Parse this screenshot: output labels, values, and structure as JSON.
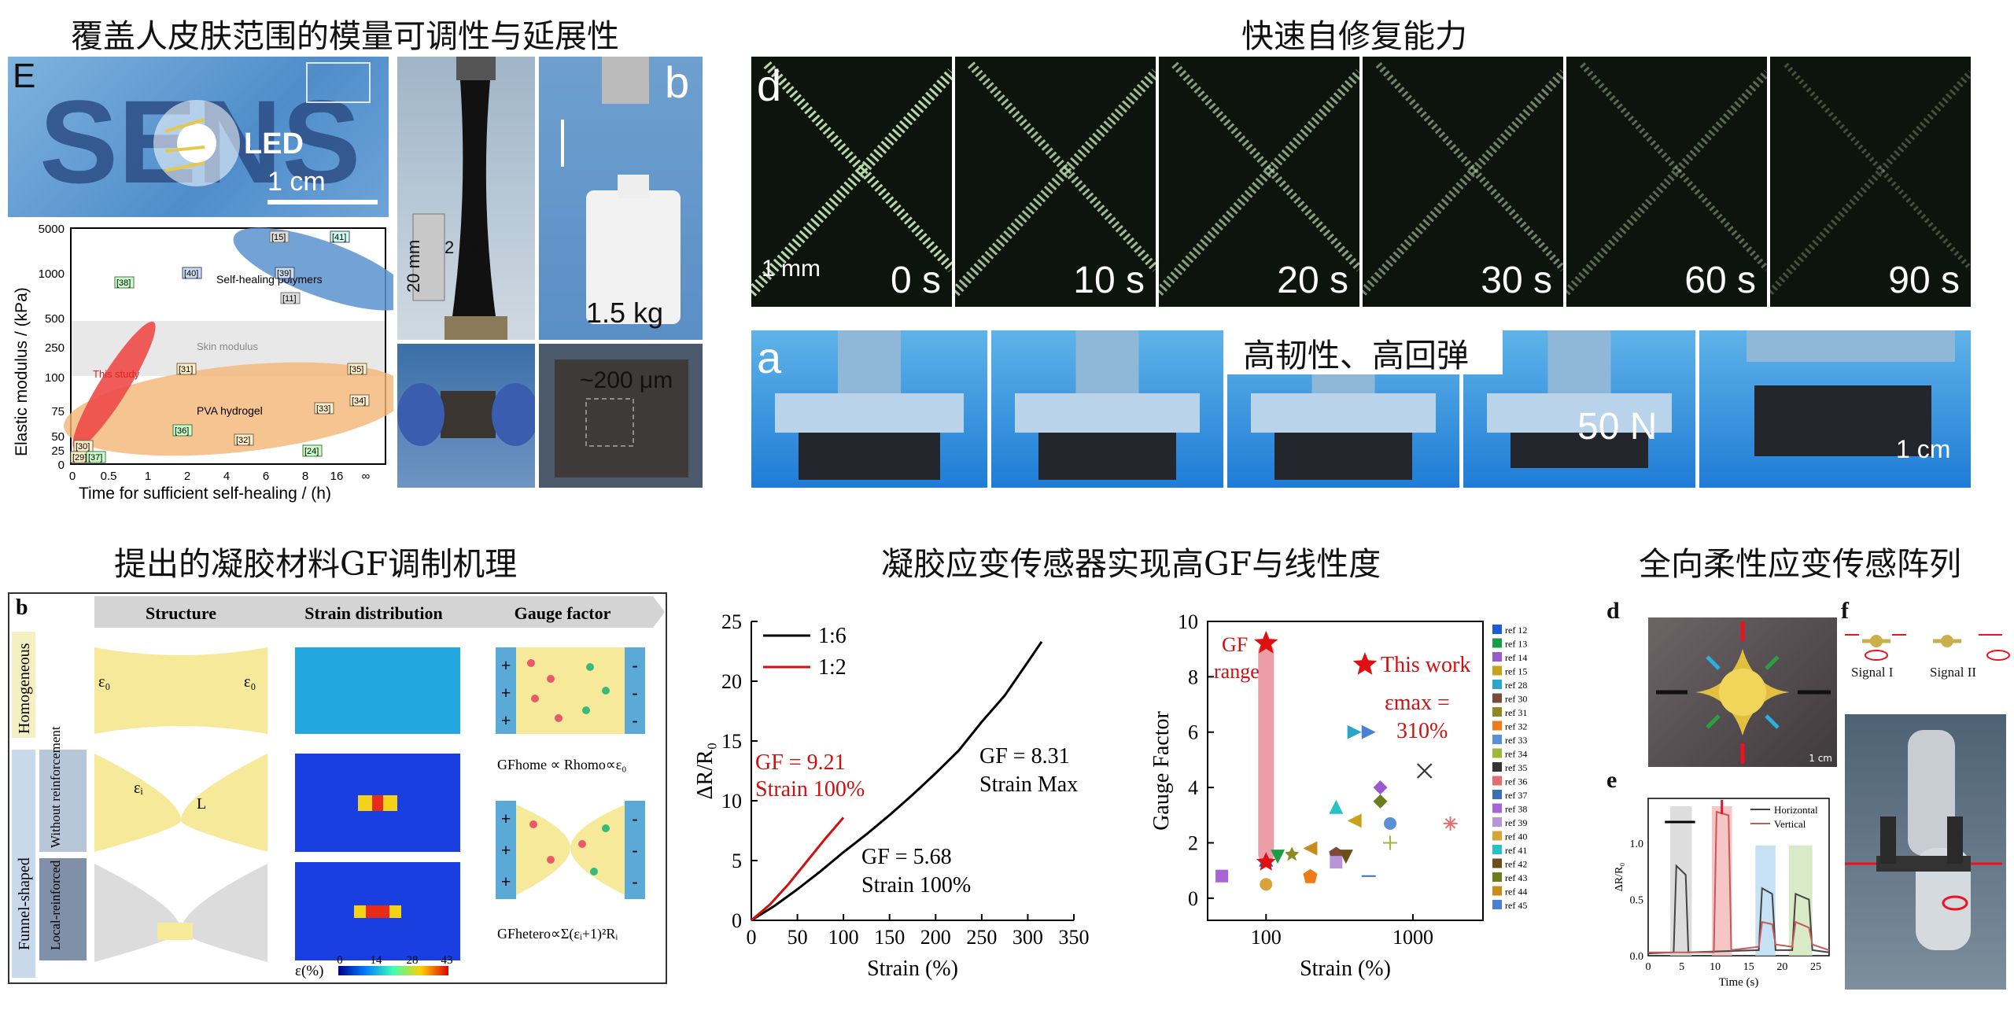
{
  "section_titles": {
    "skin_modulus": "覆盖人皮肤范围的模量可调性与延展性",
    "self_healing": "快速自修复能力",
    "toughness": "高韧性、高回弹",
    "gf_mechanism": "提出的凝胶材料GF调制机理",
    "gf_linearity": "凝胶应变传感器实现高GF与线性度",
    "array": "全向柔性应变传感阵列"
  },
  "panel_e_top": {
    "letter": "E",
    "led_label": "LED",
    "scale": "1 cm"
  },
  "panel_b_top": {
    "letter": "b",
    "dim_vertical": "20 mm",
    "dim_horizontal": "2 mm",
    "weight": "1.5 kg",
    "thickness": "~200 μm"
  },
  "panel_d_top": {
    "letter": "d",
    "scale": "1 mm",
    "times": [
      "0 s",
      "10 s",
      "20 s",
      "30 s",
      "60 s",
      "90 s"
    ]
  },
  "panel_a_top": {
    "letter": "a",
    "force": "50 N",
    "scale": "1 cm"
  },
  "modulus_chart": {
    "ylabel": "Elastic modulus / (kPa)",
    "xlabel": "Time for sufficient self-healing / (h)",
    "y_ticks": [
      "5000",
      "1000",
      "500",
      "250",
      "100",
      "75",
      "50",
      "25",
      "0"
    ],
    "x_ticks": [
      "0",
      "0.5",
      "1",
      "2",
      "4",
      "6",
      "8",
      "16",
      "∞"
    ],
    "region_self_healing": "Self-healing polymers",
    "region_skin": "Skin modulus",
    "region_pva": "PVA hydrogel",
    "this_study": "This study",
    "refs": [
      "[15]",
      "[41]",
      "[40]",
      "[39]",
      "[11]",
      "[38]",
      "[31]",
      "[35]",
      "[34]",
      "[33]",
      "[36]",
      "[32]",
      "[24]",
      "[30]",
      "[29]",
      "[37]"
    ]
  },
  "mechanism": {
    "letter": "b",
    "headers": [
      "Structure",
      "Strain distribution",
      "Gauge factor"
    ],
    "row_labels": {
      "homogeneous": "Homogeneous",
      "funnel": "Funnel-shaped",
      "without": "Without reinforcement",
      "local": "Local-reinforced"
    },
    "eps0": "ε₀",
    "epsi": "εᵢ",
    "L": "L",
    "gf_home": "GFhome ∝ Rhomo∝ε₀",
    "gf_hetero": "GFhetero∝Σ(εᵢ+1)²Rᵢ",
    "colorbar_label": "ε(%)",
    "colorbar_ticks": [
      "0",
      "14",
      "28",
      "43"
    ],
    "plus": "+",
    "minus": "-"
  },
  "chart_data": [
    {
      "type": "line",
      "xlabel": "Strain (%)",
      "ylabel": "ΔR/R₀",
      "xlim": [
        0,
        350
      ],
      "ylim": [
        0,
        25
      ],
      "x_ticks": [
        "0",
        "50",
        "100",
        "150",
        "200",
        "250",
        "300",
        "350"
      ],
      "y_ticks": [
        "0",
        "5",
        "10",
        "15",
        "20",
        "25"
      ],
      "series": [
        {
          "name": "1:6",
          "color": "#000000",
          "x": [
            0,
            25,
            50,
            75,
            100,
            125,
            150,
            175,
            200,
            225,
            250,
            275,
            300,
            315
          ],
          "y": [
            0,
            1.2,
            2.6,
            4.1,
            5.7,
            7.2,
            8.8,
            10.5,
            12.3,
            14.2,
            16.6,
            18.8,
            21.6,
            23.3
          ]
        },
        {
          "name": "1:2",
          "color": "#d01010",
          "x": [
            0,
            20,
            40,
            60,
            80,
            100
          ],
          "y": [
            0,
            1.3,
            3.0,
            4.9,
            6.8,
            8.6
          ]
        }
      ],
      "annotations": [
        "GF = 9.21",
        "Strain 100%",
        "GF = 8.31",
        "Strain Max",
        "GF = 5.68",
        "Strain 100%"
      ]
    },
    {
      "type": "scatter",
      "xlabel": "Strain (%)",
      "ylabel": "Gauge Factor",
      "xscale": "log",
      "xlim": [
        40,
        3000
      ],
      "ylim": [
        -0.8,
        10
      ],
      "x_ticks": [
        "100",
        "1000"
      ],
      "y_ticks": [
        "0",
        "2",
        "4",
        "6",
        "8",
        "10"
      ],
      "gf_range_label": [
        "GF",
        "range"
      ],
      "this_work": "This work",
      "emax": [
        "εmax =",
        "310%"
      ],
      "points": [
        {
          "ref": "ref 12",
          "x": 100,
          "y": 1.4,
          "color": "#1e5bd6",
          "shape": "tri-up"
        },
        {
          "ref": "ref 13",
          "x": 120,
          "y": 1.5,
          "color": "#1a9e45",
          "shape": "tri-down"
        },
        {
          "ref": "ref 14",
          "x": 600,
          "y": 4.0,
          "color": "#9b59d0",
          "shape": "diamond"
        },
        {
          "ref": "ref 15",
          "x": 400,
          "y": 2.8,
          "color": "#c9a21c",
          "shape": "tri-left"
        },
        {
          "ref": "ref 28",
          "x": 400,
          "y": 6.0,
          "color": "#2aa6c8",
          "shape": "tri-right"
        },
        {
          "ref": "ref 30",
          "x": 300,
          "y": 1.6,
          "color": "#7a4a3a",
          "shape": "hexagon"
        },
        {
          "ref": "ref 31",
          "x": 150,
          "y": 1.6,
          "color": "#8e8a22",
          "shape": "star"
        },
        {
          "ref": "ref 32",
          "x": 200,
          "y": 0.8,
          "color": "#ef7a17",
          "shape": "pentagon"
        },
        {
          "ref": "ref 33",
          "x": 700,
          "y": 2.7,
          "color": "#5b8fd6",
          "shape": "sphere"
        },
        {
          "ref": "ref 34",
          "x": 700,
          "y": 2.0,
          "color": "#9aba38",
          "shape": "plus"
        },
        {
          "ref": "ref 35",
          "x": 1200,
          "y": 4.6,
          "color": "#333333",
          "shape": "x"
        },
        {
          "ref": "ref 36",
          "x": 1800,
          "y": 2.7,
          "color": "#e07070",
          "shape": "asterisk"
        },
        {
          "ref": "ref 37",
          "x": 500,
          "y": 0.8,
          "color": "#3d6fb8",
          "shape": "hline"
        },
        {
          "ref": "ref 38",
          "x": 50,
          "y": 0.8,
          "color": "#a865d8",
          "shape": "square"
        },
        {
          "ref": "ref 39",
          "x": 300,
          "y": 1.3,
          "color": "#b894d8",
          "shape": "square"
        },
        {
          "ref": "ref 40",
          "x": 100,
          "y": 0.5,
          "color": "#d8a43a",
          "shape": "circle"
        },
        {
          "ref": "ref 41",
          "x": 300,
          "y": 3.3,
          "color": "#2ac0c8",
          "shape": "tri-up"
        },
        {
          "ref": "ref 42",
          "x": 350,
          "y": 1.5,
          "color": "#6b4e1b",
          "shape": "tri-down"
        },
        {
          "ref": "ref 43",
          "x": 600,
          "y": 3.5,
          "color": "#6e7d1c",
          "shape": "diamond"
        },
        {
          "ref": "ref 44",
          "x": 200,
          "y": 1.8,
          "color": "#c98b1c",
          "shape": "tri-left"
        },
        {
          "ref": "ref 45",
          "x": 500,
          "y": 6.0,
          "color": "#4a7fd6",
          "shape": "tri-right"
        }
      ],
      "this_work_point": {
        "x": 100,
        "y": 9.21
      }
    },
    {
      "type": "line",
      "xlabel": "Time (s)",
      "ylabel": "ΔR/R₀",
      "xlim": [
        0,
        27
      ],
      "ylim": [
        0,
        1.4
      ],
      "x_ticks": [
        "0",
        "5",
        "10",
        "15",
        "20",
        "25"
      ],
      "y_ticks": [
        "0.0",
        "0.5",
        "1.0"
      ],
      "series": [
        {
          "name": "Horizontal",
          "color": "#444444"
        },
        {
          "name": "Vertical",
          "color": "#c65a5a"
        }
      ]
    }
  ],
  "array_panel": {
    "letter_d": "d",
    "letter_e": "e",
    "letter_f": "f",
    "scale": "1 cm",
    "signal1": "Signal I",
    "signal2": "Signal II"
  }
}
